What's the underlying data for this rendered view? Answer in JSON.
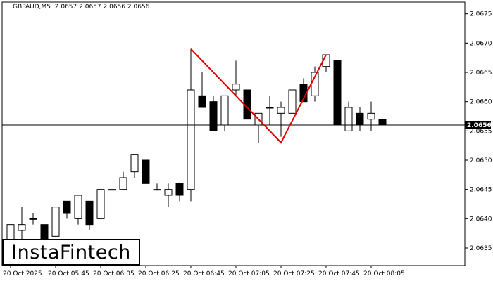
{
  "header": {
    "symbol": "GBPAUD,M5",
    "open": "2.0657",
    "high": "2.0657",
    "low": "2.0656",
    "close": "2.0656"
  },
  "logo": {
    "text": "InstaFintech"
  },
  "colors": {
    "bull_fill": "#ffffff",
    "bear_fill": "#000000",
    "candle_stroke": "#000000",
    "pattern_line": "#e00000",
    "price_line": "#000000",
    "price_label_bg": "#000000",
    "price_label_text": "#ffffff"
  },
  "chart_data": {
    "type": "candlestick",
    "y_ticks": [
      "2.0635",
      "2.0640",
      "2.0645",
      "2.0650",
      "2.0655",
      "2.0660",
      "2.0665",
      "2.0670",
      "2.0675"
    ],
    "ylim": [
      2.0632,
      2.0677
    ],
    "x_tick_labels": [
      "20 Oct 2025",
      "20 Oct 05:45",
      "20 Oct 06:05",
      "20 Oct 06:25",
      "20 Oct 06:45",
      "20 Oct 07:05",
      "20 Oct 07:25",
      "20 Oct 07:45",
      "20 Oct 08:05"
    ],
    "current_price": "2.0656",
    "candles": [
      {
        "o": 2.0633,
        "h": 2.0639,
        "l": 2.0633,
        "c": 2.0639
      },
      {
        "o": 2.0638,
        "h": 2.0642,
        "l": 2.0635,
        "c": 2.0639
      },
      {
        "o": 2.064,
        "h": 2.0641,
        "l": 2.0639,
        "c": 2.064
      },
      {
        "o": 2.0639,
        "h": 2.0639,
        "l": 2.0633,
        "c": 2.0633
      },
      {
        "o": 2.0637,
        "h": 2.0642,
        "l": 2.0637,
        "c": 2.0642
      },
      {
        "o": 2.0643,
        "h": 2.0643,
        "l": 2.064,
        "c": 2.0641
      },
      {
        "o": 2.064,
        "h": 2.0644,
        "l": 2.0639,
        "c": 2.0644
      },
      {
        "o": 2.0643,
        "h": 2.0643,
        "l": 2.0638,
        "c": 2.0639
      },
      {
        "o": 2.064,
        "h": 2.0645,
        "l": 2.064,
        "c": 2.0645
      },
      {
        "o": 2.0645,
        "h": 2.0645,
        "l": 2.0645,
        "c": 2.0645
      },
      {
        "o": 2.0645,
        "h": 2.0648,
        "l": 2.0645,
        "c": 2.0647
      },
      {
        "o": 2.0648,
        "h": 2.0651,
        "l": 2.0647,
        "c": 2.0651
      },
      {
        "o": 2.065,
        "h": 2.065,
        "l": 2.0646,
        "c": 2.0646
      },
      {
        "o": 2.0645,
        "h": 2.0646,
        "l": 2.0645,
        "c": 2.0645
      },
      {
        "o": 2.0644,
        "h": 2.0646,
        "l": 2.0642,
        "c": 2.0645
      },
      {
        "o": 2.0646,
        "h": 2.0646,
        "l": 2.0643,
        "c": 2.0644
      },
      {
        "o": 2.0645,
        "h": 2.0669,
        "l": 2.0643,
        "c": 2.0662
      },
      {
        "o": 2.0661,
        "h": 2.0665,
        "l": 2.0659,
        "c": 2.0659
      },
      {
        "o": 2.066,
        "h": 2.0661,
        "l": 2.0655,
        "c": 2.0655
      },
      {
        "o": 2.0656,
        "h": 2.0661,
        "l": 2.0655,
        "c": 2.0661
      },
      {
        "o": 2.0662,
        "h": 2.0667,
        "l": 2.0661,
        "c": 2.0663
      },
      {
        "o": 2.0662,
        "h": 2.0662,
        "l": 2.0657,
        "c": 2.0657
      },
      {
        "o": 2.0656,
        "h": 2.0658,
        "l": 2.0653,
        "c": 2.0658
      },
      {
        "o": 2.0659,
        "h": 2.0661,
        "l": 2.0656,
        "c": 2.0659
      },
      {
        "o": 2.0658,
        "h": 2.066,
        "l": 2.0654,
        "c": 2.0659
      },
      {
        "o": 2.0658,
        "h": 2.0662,
        "l": 2.0658,
        "c": 2.0662
      },
      {
        "o": 2.0663,
        "h": 2.0664,
        "l": 2.066,
        "c": 2.066
      },
      {
        "o": 2.0661,
        "h": 2.0666,
        "l": 2.066,
        "c": 2.0665
      },
      {
        "o": 2.0666,
        "h": 2.0668,
        "l": 2.0665,
        "c": 2.0668
      },
      {
        "o": 2.0667,
        "h": 2.0667,
        "l": 2.0656,
        "c": 2.0656
      },
      {
        "o": 2.0655,
        "h": 2.066,
        "l": 2.0655,
        "c": 2.0659
      },
      {
        "o": 2.0658,
        "h": 2.0659,
        "l": 2.0655,
        "c": 2.0656
      },
      {
        "o": 2.0657,
        "h": 2.066,
        "l": 2.0655,
        "c": 2.0658
      },
      {
        "o": 2.0657,
        "h": 2.0657,
        "l": 2.0656,
        "c": 2.0656
      }
    ],
    "pattern_line": [
      {
        "candle": 16,
        "price": 2.0669
      },
      {
        "candle": 24,
        "price": 2.0653
      },
      {
        "candle": 28,
        "price": 2.0668
      }
    ]
  }
}
